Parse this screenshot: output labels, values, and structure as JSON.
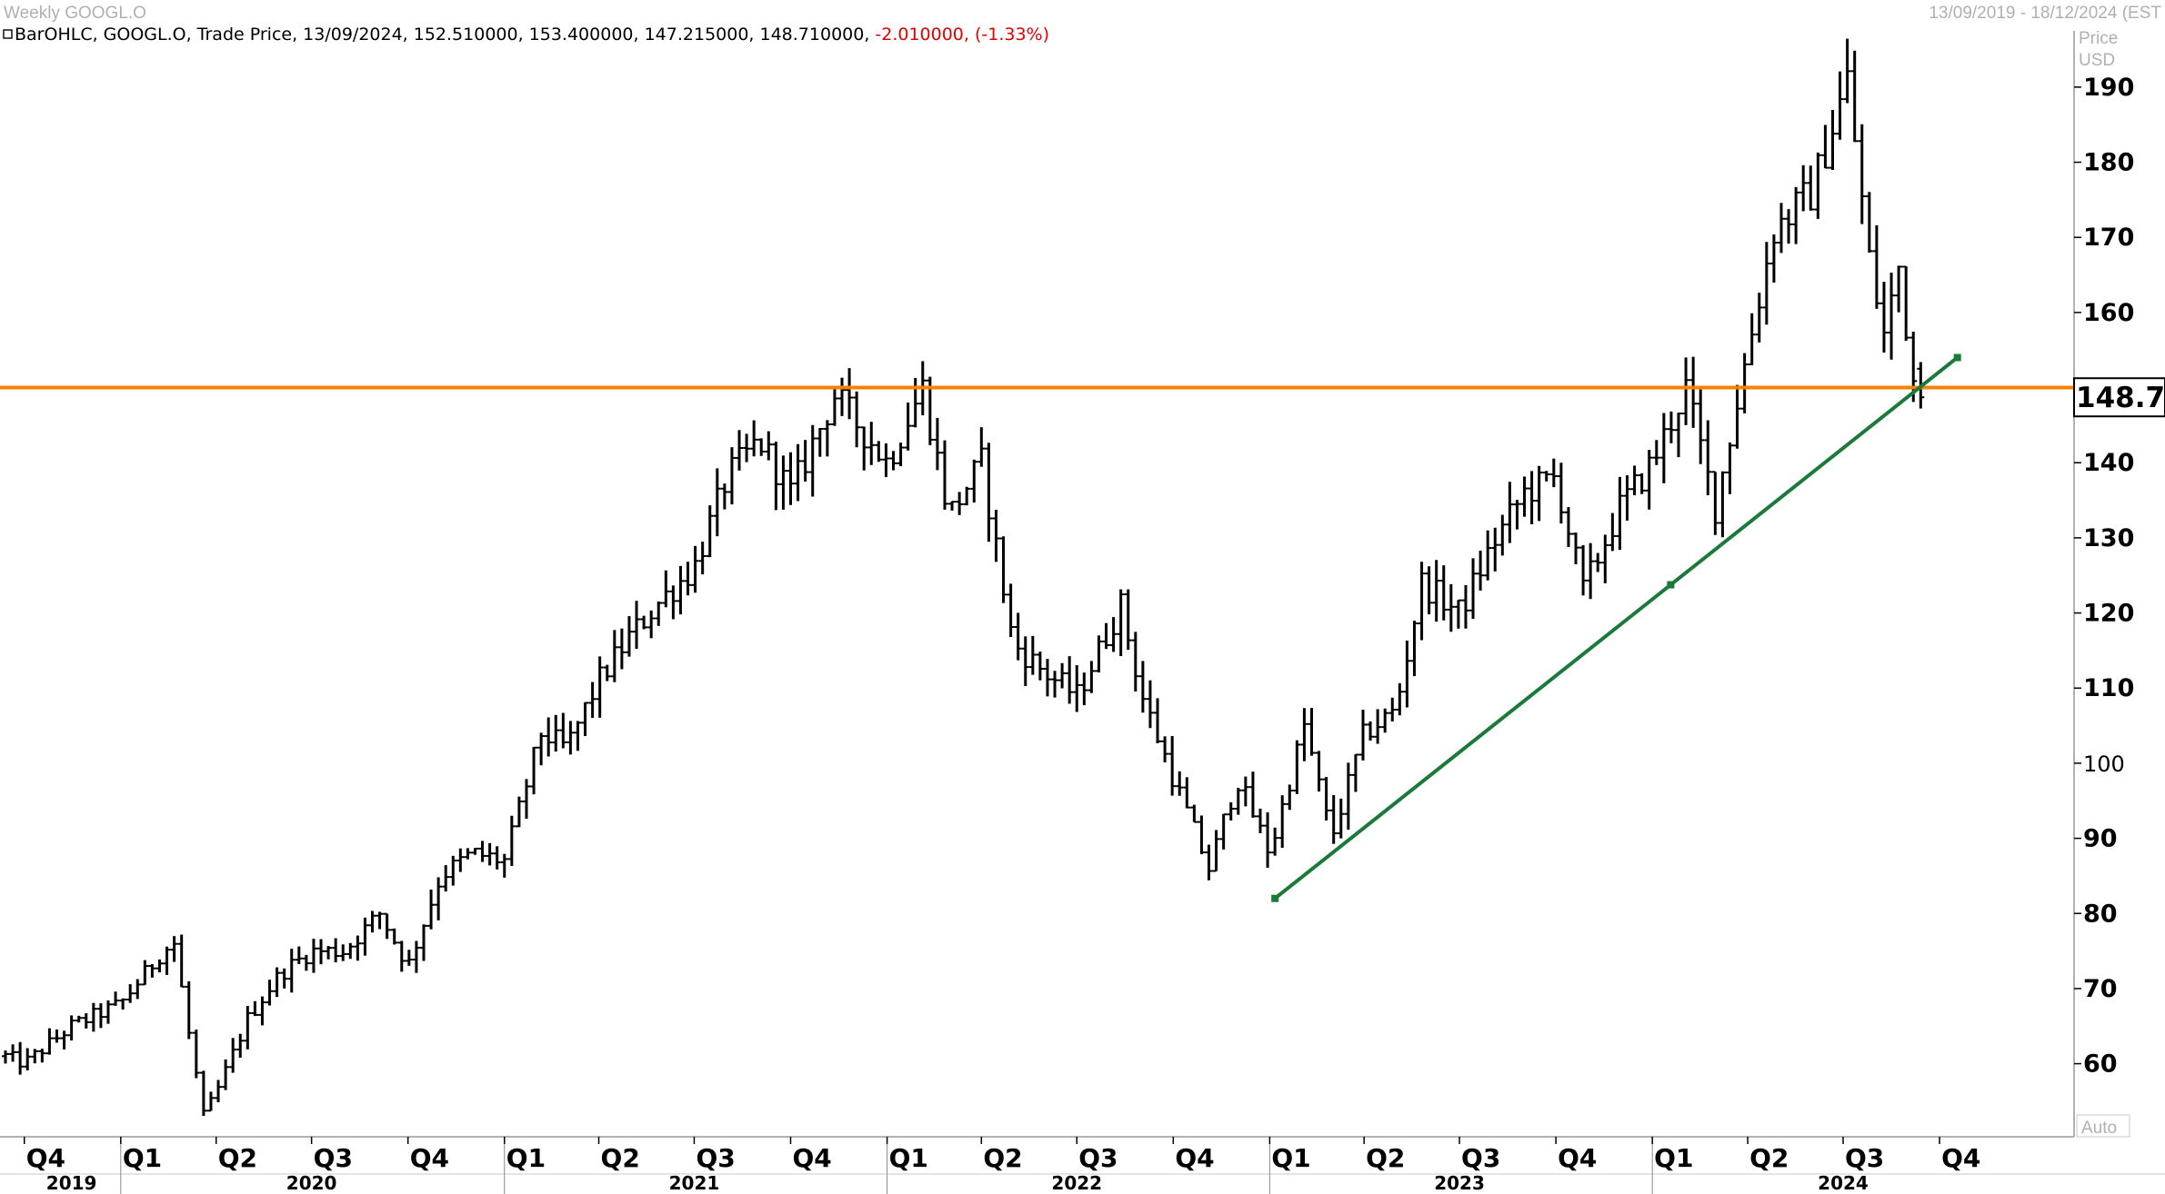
{
  "header": {
    "title": "Weekly GOOGL.O",
    "date_range": "13/09/2019 - 18/12/2024 (EST",
    "legend_prefix": "BarOHLC, GOOGL.O, Trade Price, 13/09/2024, 152.510000, 153.400000, 147.215000, 148.710000,",
    "legend_change": "-2.010000, (-1.33%)"
  },
  "axis": {
    "price_caption": "Price",
    "currency_caption": "USD",
    "auto_label": "Auto",
    "current_price_label": "148.71"
  },
  "colors": {
    "bars": "#000000",
    "horizontal_line": "#ff8000",
    "trendline": "#1a7a3a",
    "price_tag_bg": "#ffffff",
    "negative_change": "#e00000"
  },
  "chart_data": {
    "type": "ohlc",
    "title": "Weekly GOOGL.O",
    "ylabel": "Price USD",
    "ylim": [
      51,
      197
    ],
    "xlim": [
      "2019-09-13",
      "2024-12-18"
    ],
    "y_ticks": [
      60,
      70,
      80,
      90,
      100,
      110,
      120,
      130,
      140,
      150,
      160,
      170,
      180,
      190
    ],
    "grid": false,
    "quarter_ticks": [
      {
        "label": "Q4",
        "date": "2019-10-01"
      },
      {
        "label": "Q1",
        "date": "2020-01-01"
      },
      {
        "label": "Q2",
        "date": "2020-04-01"
      },
      {
        "label": "Q3",
        "date": "2020-07-01"
      },
      {
        "label": "Q4",
        "date": "2020-10-01"
      },
      {
        "label": "Q1",
        "date": "2021-01-01"
      },
      {
        "label": "Q2",
        "date": "2021-04-01"
      },
      {
        "label": "Q3",
        "date": "2021-07-01"
      },
      {
        "label": "Q4",
        "date": "2021-10-01"
      },
      {
        "label": "Q1",
        "date": "2022-01-01"
      },
      {
        "label": "Q2",
        "date": "2022-04-01"
      },
      {
        "label": "Q3",
        "date": "2022-07-01"
      },
      {
        "label": "Q4",
        "date": "2022-10-01"
      },
      {
        "label": "Q1",
        "date": "2023-01-01"
      },
      {
        "label": "Q2",
        "date": "2023-04-01"
      },
      {
        "label": "Q3",
        "date": "2023-07-01"
      },
      {
        "label": "Q4",
        "date": "2023-10-01"
      },
      {
        "label": "Q1",
        "date": "2024-01-01"
      },
      {
        "label": "Q2",
        "date": "2024-04-01"
      },
      {
        "label": "Q3",
        "date": "2024-07-01"
      },
      {
        "label": "Q4",
        "date": "2024-10-01"
      }
    ],
    "year_labels": [
      {
        "label": "2019",
        "date": "2019-11-15"
      },
      {
        "label": "2020",
        "date": "2020-07-01"
      },
      {
        "label": "2021",
        "date": "2021-07-01"
      },
      {
        "label": "2022",
        "date": "2022-07-01"
      },
      {
        "label": "2023",
        "date": "2023-07-01"
      },
      {
        "label": "2024",
        "date": "2024-07-01"
      }
    ],
    "closing_path": [
      {
        "date": "2019-09-13",
        "close": 61
      },
      {
        "date": "2019-10-01",
        "close": 60
      },
      {
        "date": "2019-11-15",
        "close": 65
      },
      {
        "date": "2020-01-01",
        "close": 68
      },
      {
        "date": "2020-02-10",
        "close": 75
      },
      {
        "date": "2020-02-21",
        "close": 76
      },
      {
        "date": "2020-03-06",
        "close": 64
      },
      {
        "date": "2020-03-20",
        "close": 53
      },
      {
        "date": "2020-04-01",
        "close": 56
      },
      {
        "date": "2020-05-01",
        "close": 66
      },
      {
        "date": "2020-06-01",
        "close": 72
      },
      {
        "date": "2020-07-01",
        "close": 75
      },
      {
        "date": "2020-08-01",
        "close": 75
      },
      {
        "date": "2020-09-04",
        "close": 80
      },
      {
        "date": "2020-10-01",
        "close": 73
      },
      {
        "date": "2020-11-01",
        "close": 85
      },
      {
        "date": "2020-12-01",
        "close": 88
      },
      {
        "date": "2021-01-01",
        "close": 87
      },
      {
        "date": "2021-02-05",
        "close": 104
      },
      {
        "date": "2021-03-01",
        "close": 102
      },
      {
        "date": "2021-04-01",
        "close": 111
      },
      {
        "date": "2021-05-01",
        "close": 117
      },
      {
        "date": "2021-06-01",
        "close": 122
      },
      {
        "date": "2021-07-01",
        "close": 126
      },
      {
        "date": "2021-08-01",
        "close": 138
      },
      {
        "date": "2021-09-01",
        "close": 143
      },
      {
        "date": "2021-10-01",
        "close": 136
      },
      {
        "date": "2021-11-12",
        "close": 149
      },
      {
        "date": "2021-12-10",
        "close": 144
      },
      {
        "date": "2022-01-01",
        "close": 140
      },
      {
        "date": "2022-02-04",
        "close": 150
      },
      {
        "date": "2022-03-01",
        "close": 133
      },
      {
        "date": "2022-04-01",
        "close": 140
      },
      {
        "date": "2022-05-01",
        "close": 116
      },
      {
        "date": "2022-06-01",
        "close": 112
      },
      {
        "date": "2022-07-01",
        "close": 109
      },
      {
        "date": "2022-08-12",
        "close": 121
      },
      {
        "date": "2022-09-01",
        "close": 109
      },
      {
        "date": "2022-10-01",
        "close": 98
      },
      {
        "date": "2022-11-04",
        "close": 86
      },
      {
        "date": "2022-12-01",
        "close": 98
      },
      {
        "date": "2023-01-01",
        "close": 88
      },
      {
        "date": "2023-02-03",
        "close": 105
      },
      {
        "date": "2023-03-01",
        "close": 90
      },
      {
        "date": "2023-04-01",
        "close": 104
      },
      {
        "date": "2023-05-01",
        "close": 107
      },
      {
        "date": "2023-05-26",
        "close": 124
      },
      {
        "date": "2023-07-01",
        "close": 120
      },
      {
        "date": "2023-08-01",
        "close": 129
      },
      {
        "date": "2023-09-01",
        "close": 136
      },
      {
        "date": "2023-10-01",
        "close": 138
      },
      {
        "date": "2023-10-27",
        "close": 123
      },
      {
        "date": "2023-12-01",
        "close": 134
      },
      {
        "date": "2024-01-01",
        "close": 140
      },
      {
        "date": "2024-02-02",
        "close": 150
      },
      {
        "date": "2024-03-01",
        "close": 134
      },
      {
        "date": "2024-04-01",
        "close": 155
      },
      {
        "date": "2024-04-26",
        "close": 171
      },
      {
        "date": "2024-06-01",
        "close": 176
      },
      {
        "date": "2024-07-05",
        "close": 191
      },
      {
        "date": "2024-07-26",
        "close": 167
      },
      {
        "date": "2024-08-09",
        "close": 157
      },
      {
        "date": "2024-08-23",
        "close": 166
      },
      {
        "date": "2024-09-06",
        "close": 151
      },
      {
        "date": "2024-09-13",
        "close": 148.71
      }
    ],
    "horizontal_line": {
      "value": 150
    },
    "trendline": {
      "start": {
        "date": "2023-01-06",
        "price": 82
      },
      "end": {
        "date": "2024-10-18",
        "price": 154
      }
    },
    "last_bar": {
      "date": "2024-09-13",
      "open": 152.51,
      "high": 153.4,
      "low": 147.215,
      "close": 148.71
    }
  }
}
